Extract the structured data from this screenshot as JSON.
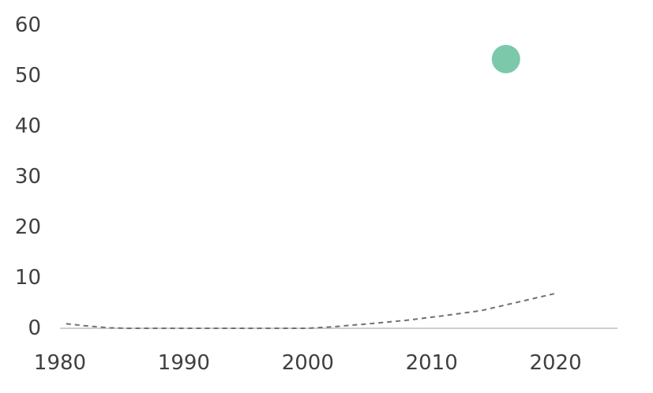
{
  "chart_data": {
    "type": "scatter",
    "title": "",
    "xlabel": "",
    "ylabel": "",
    "xlim": [
      1980,
      2025
    ],
    "ylim": [
      0,
      60
    ],
    "x_ticks": [
      1980,
      1990,
      2000,
      2010,
      2020
    ],
    "y_ticks": [
      0,
      10,
      20,
      30,
      40,
      50,
      60
    ],
    "grid": false,
    "legend": "none",
    "colors": {
      "point": "#7cc8aa",
      "trend": "#707070",
      "axis": "#bfbfbf",
      "text": "#404040"
    },
    "series": [
      {
        "type": "scatter",
        "points": [
          {
            "x": 2016,
            "y": 53.3
          }
        ]
      },
      {
        "type": "line",
        "style": "dashed",
        "points": [
          {
            "x": 1980.5,
            "y": 0.9
          },
          {
            "x": 1982,
            "y": 0.5
          },
          {
            "x": 1984,
            "y": 0.1
          },
          {
            "x": 1985.5,
            "y": 0
          },
          {
            "x": 2000,
            "y": 0
          },
          {
            "x": 2002,
            "y": 0.3
          },
          {
            "x": 2005,
            "y": 0.9
          },
          {
            "x": 2008,
            "y": 1.6
          },
          {
            "x": 2011,
            "y": 2.5
          },
          {
            "x": 2014,
            "y": 3.5
          },
          {
            "x": 2017,
            "y": 5.2
          },
          {
            "x": 2020,
            "y": 6.9
          }
        ]
      }
    ]
  }
}
